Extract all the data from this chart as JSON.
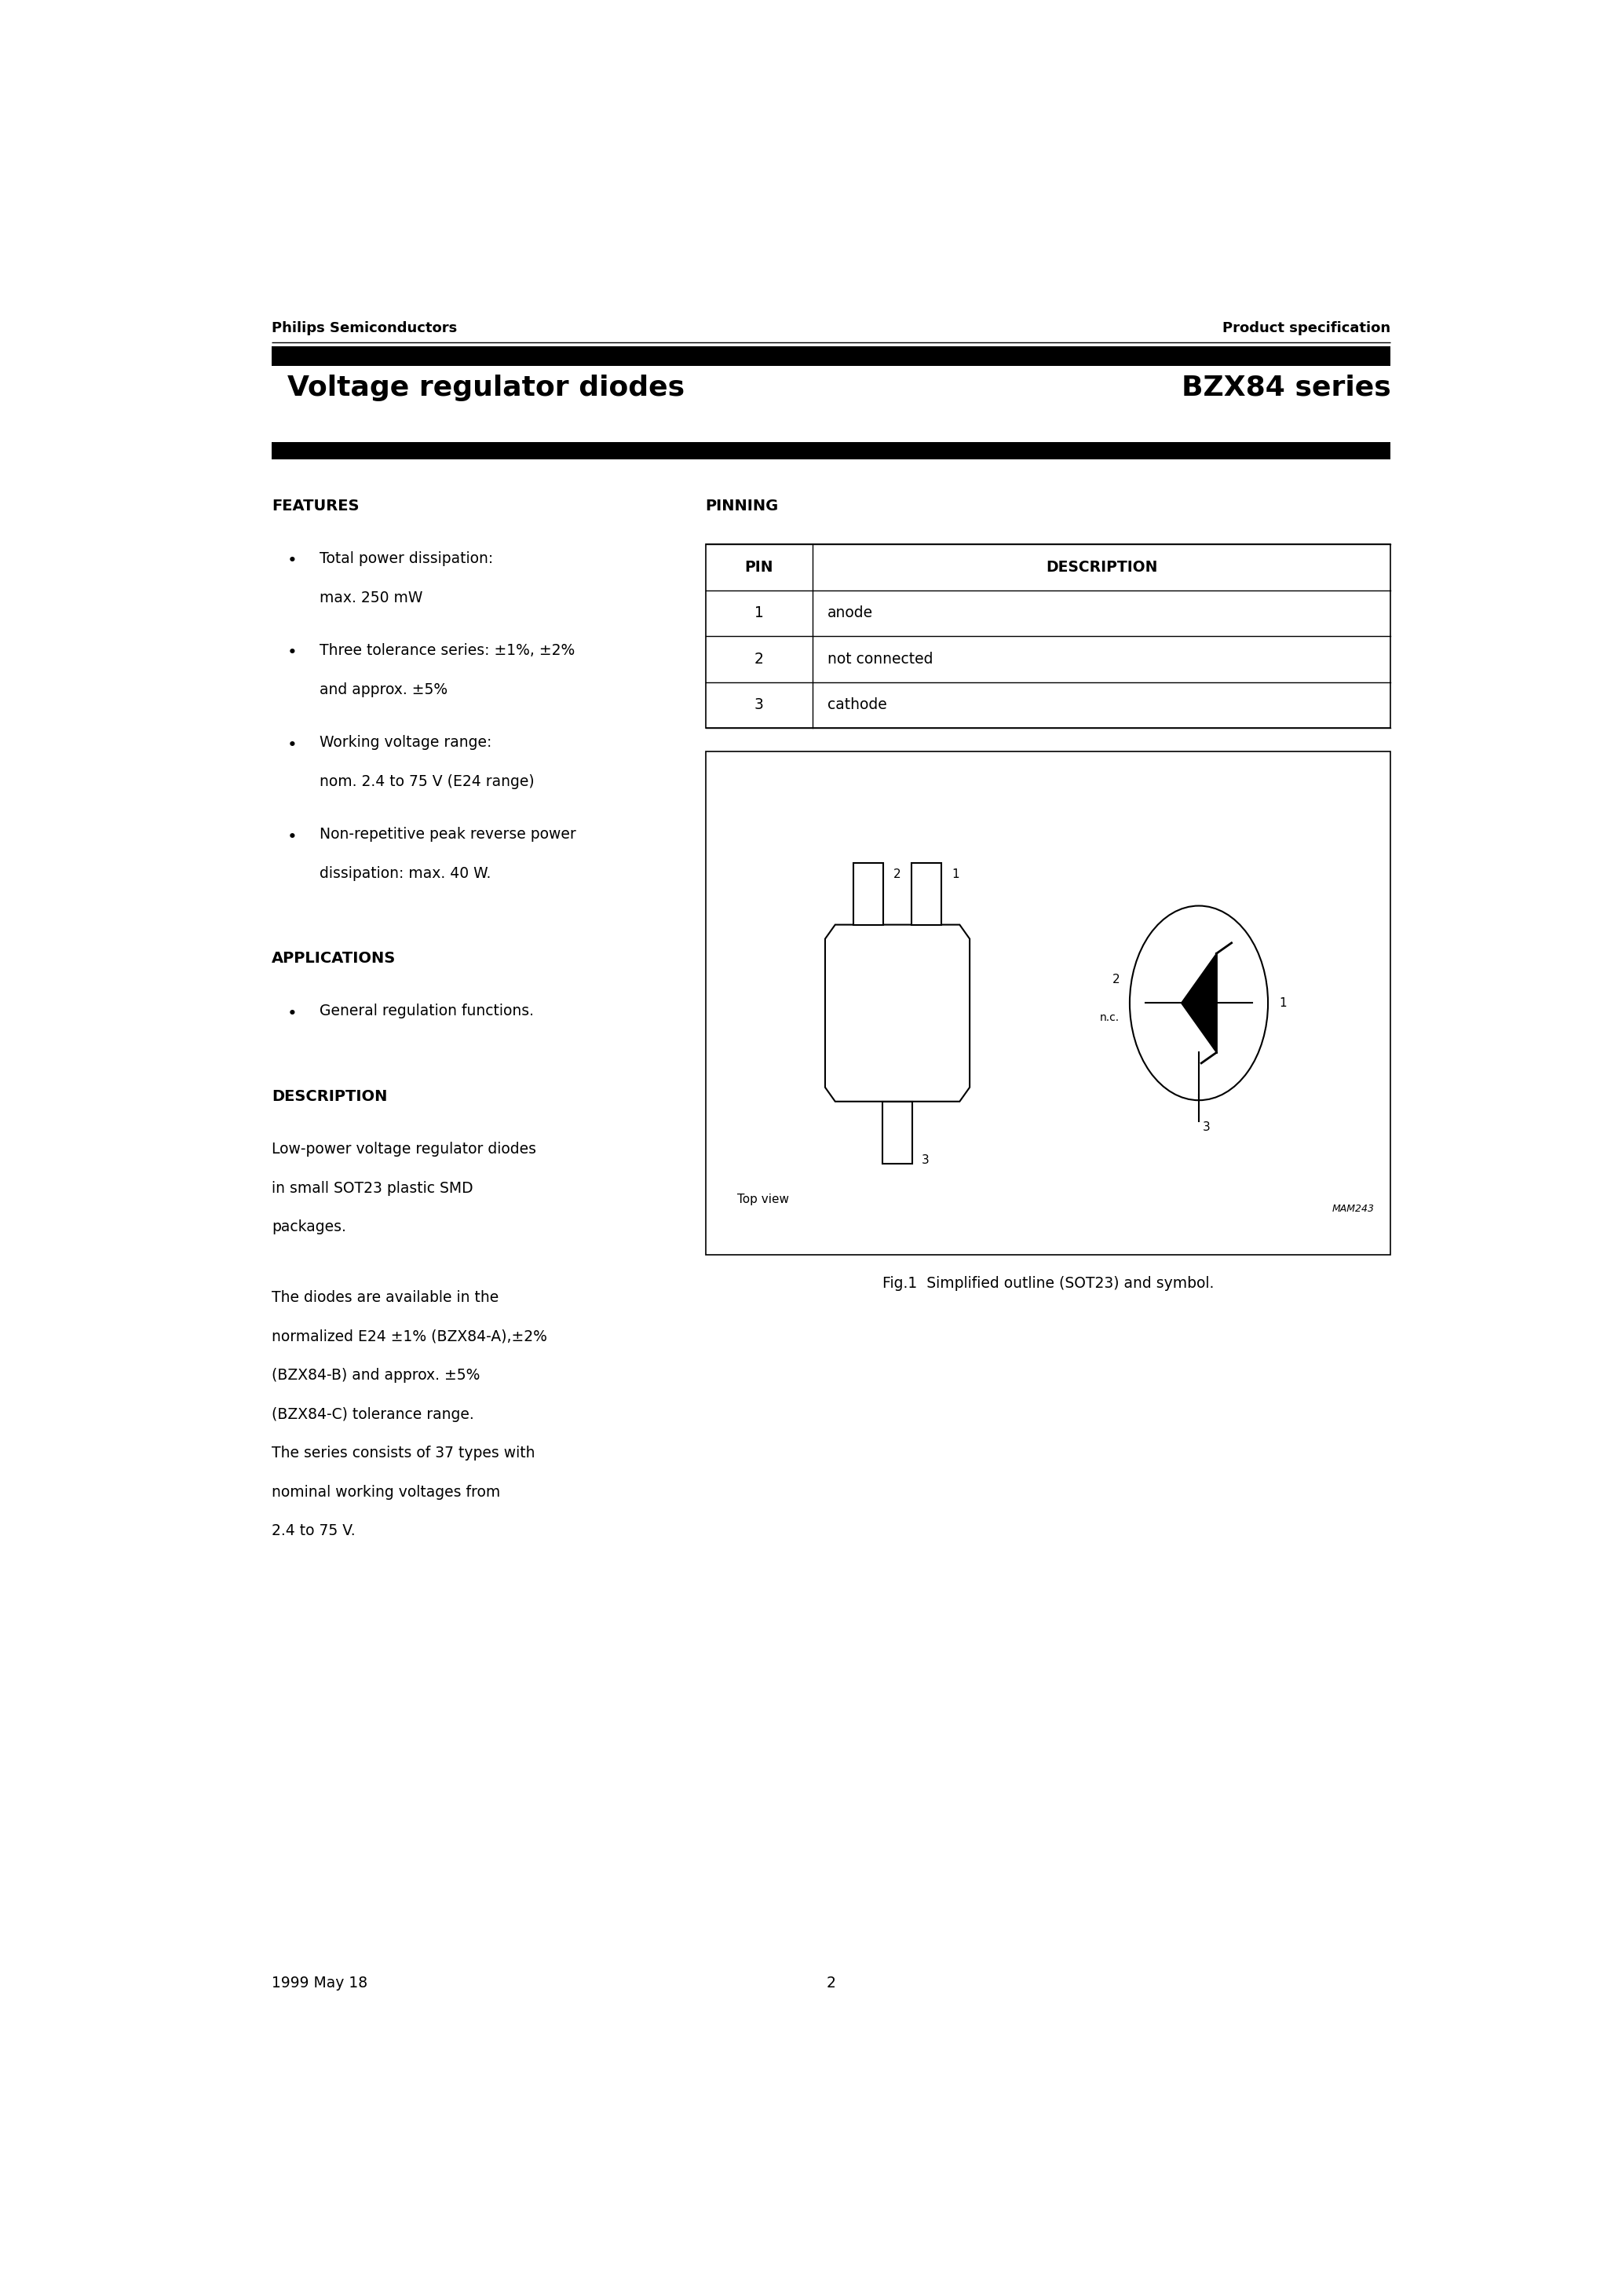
{
  "page_width": 20.66,
  "page_height": 29.24,
  "bg_color": "#ffffff",
  "header_left": "Philips Semiconductors",
  "header_right": "Product specification",
  "title_left": "Voltage regulator diodes",
  "title_right": "BZX84 series",
  "features_title": "FEATURES",
  "features_bullets": [
    [
      "Total power dissipation:",
      "max. 250 mW"
    ],
    [
      "Three tolerance series: ±1%, ±2%",
      "and approx. ±5%"
    ],
    [
      "Working voltage range:",
      "nom. 2.4 to 75 V (E24 range)"
    ],
    [
      "Non-repetitive peak reverse power",
      "dissipation: max. 40 W."
    ]
  ],
  "applications_title": "APPLICATIONS",
  "applications_bullets": [
    [
      "General regulation functions."
    ]
  ],
  "description_title": "DESCRIPTION",
  "description_para1": [
    "Low-power voltage regulator diodes",
    "in small SOT23 plastic SMD",
    "packages."
  ],
  "description_para2": [
    "The diodes are available in the",
    "normalized E24 ±1% (BZX84-A),±2%",
    "(BZX84-B) and approx. ±5%",
    "(BZX84-C) tolerance range.",
    "The series consists of 37 types with",
    "nominal working voltages from",
    "2.4 to 75 V."
  ],
  "pinning_title": "PINNING",
  "pin_table_headers": [
    "PIN",
    "DESCRIPTION"
  ],
  "pin_table_rows": [
    [
      "1",
      "anode"
    ],
    [
      "2",
      "not connected"
    ],
    [
      "3",
      "cathode"
    ]
  ],
  "fig_caption": "Fig.1  Simplified outline (SOT23) and symbol.",
  "mam_label": "MAM243",
  "top_view_label": "Top view",
  "footer_left": "1999 May 18",
  "footer_center": "2"
}
